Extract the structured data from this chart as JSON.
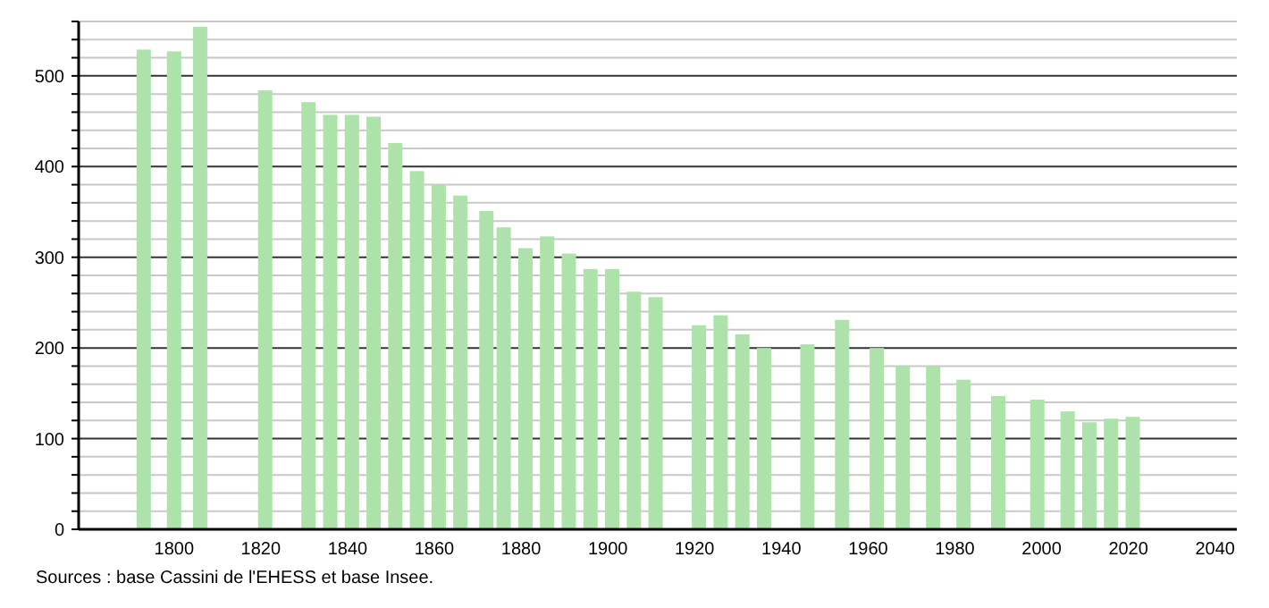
{
  "chart_data": {
    "type": "bar",
    "x": [
      1793,
      1800,
      1806,
      1821,
      1831,
      1836,
      1841,
      1846,
      1851,
      1856,
      1861,
      1866,
      1872,
      1876,
      1881,
      1886,
      1891,
      1896,
      1901,
      1906,
      1911,
      1921,
      1926,
      1931,
      1936,
      1946,
      1954,
      1962,
      1968,
      1975,
      1982,
      1990,
      1999,
      2006,
      2011,
      2016,
      2021
    ],
    "values": [
      529,
      527,
      554,
      484,
      471,
      457,
      457,
      455,
      426,
      395,
      380,
      368,
      351,
      333,
      310,
      323,
      304,
      287,
      287,
      262,
      256,
      225,
      236,
      215,
      200,
      204,
      231,
      200,
      180,
      180,
      165,
      147,
      143,
      130,
      118,
      122,
      124
    ],
    "color": "#ade3aa",
    "xlim": [
      1778,
      2045
    ],
    "xticks": [
      1800,
      1820,
      1840,
      1860,
      1880,
      1900,
      1920,
      1940,
      1960,
      1980,
      2000,
      2020,
      2040
    ],
    "ylim": [
      0,
      560
    ],
    "yticks": [
      0,
      {
        "value": 20,
        "label": null
      },
      {
        "value": 40,
        "label": null
      },
      {
        "value": 60,
        "label": null
      },
      {
        "value": 80,
        "label": null
      },
      100,
      {
        "value": 120,
        "label": null
      },
      {
        "value": 140,
        "label": null
      },
      {
        "value": 160,
        "label": null
      },
      {
        "value": 180,
        "label": null
      },
      200,
      {
        "value": 220,
        "label": null
      },
      {
        "value": 240,
        "label": null
      },
      {
        "value": 260,
        "label": null
      },
      {
        "value": 280,
        "label": null
      },
      300,
      {
        "value": 320,
        "label": null
      },
      {
        "value": 340,
        "label": null
      },
      {
        "value": 360,
        "label": null
      },
      {
        "value": 380,
        "label": null
      },
      400,
      {
        "value": 420,
        "label": null
      },
      {
        "value": 440,
        "label": null
      },
      {
        "value": 460,
        "label": null
      },
      {
        "value": 480,
        "label": null
      },
      500,
      {
        "value": 520,
        "label": null
      },
      {
        "value": 540,
        "label": null
      },
      {
        "value": 560,
        "label": null
      }
    ],
    "grid": "y",
    "annotations": [
      "Sources : base Cassini de l'EHESS et base Insee."
    ]
  }
}
